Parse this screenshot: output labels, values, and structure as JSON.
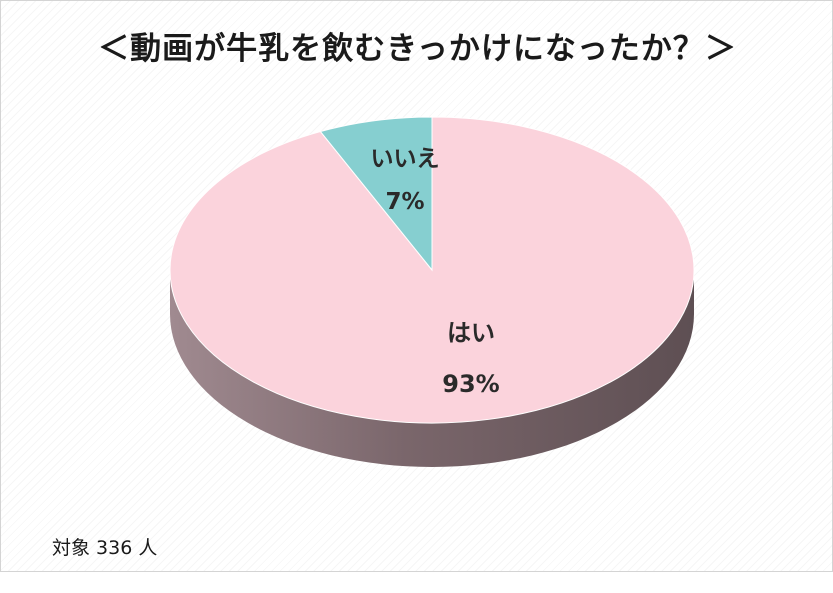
{
  "chart_data": {
    "type": "pie",
    "title": "＜動画が牛乳を飲むきっかけになったか？＞",
    "slices": [
      {
        "label": "はい",
        "value": 93,
        "value_label": "93%",
        "color": "#fbd3dc"
      },
      {
        "label": "いいえ",
        "value": 7,
        "value_label": "7%",
        "color": "#86cfd0"
      }
    ],
    "legend": "none",
    "style": "3d"
  },
  "note": "対象 336 人"
}
